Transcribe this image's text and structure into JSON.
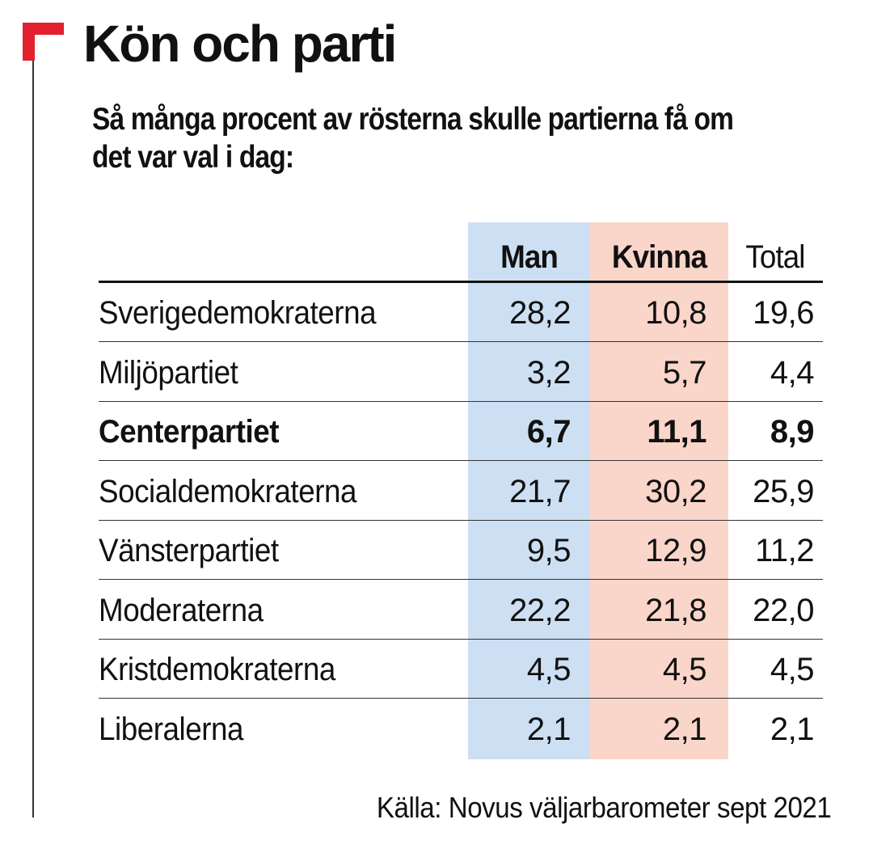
{
  "title": "Kön och parti",
  "subtitle": "Så många procent av rösterna skulle partierna få om det var val i dag:",
  "source": "Källa: Novus väljarbarometer sept 2021",
  "colors": {
    "logo": "#e3202d",
    "man_column": "#cddff3",
    "kvinna_column": "#fad5c9"
  },
  "chart_data": {
    "type": "table",
    "columns": [
      "Man",
      "Kvinna",
      "Total"
    ],
    "rows": [
      {
        "party": "Sverigedemokraterna",
        "man": "28,2",
        "kvinna": "10,8",
        "total": "19,6",
        "bold": false
      },
      {
        "party": "Miljöpartiet",
        "man": "3,2",
        "kvinna": "5,7",
        "total": "4,4",
        "bold": false
      },
      {
        "party": "Centerpartiet",
        "man": "6,7",
        "kvinna": "11,1",
        "total": "8,9",
        "bold": true
      },
      {
        "party": "Socialdemokraterna",
        "man": "21,7",
        "kvinna": "30,2",
        "total": "25,9",
        "bold": false
      },
      {
        "party": "Vänsterpartiet",
        "man": "9,5",
        "kvinna": "12,9",
        "total": "11,2",
        "bold": false
      },
      {
        "party": "Moderaterna",
        "man": "22,2",
        "kvinna": "21,8",
        "total": "22,0",
        "bold": false
      },
      {
        "party": "Kristdemokraterna",
        "man": "4,5",
        "kvinna": "4,5",
        "total": "4,5",
        "bold": false
      },
      {
        "party": "Liberalerna",
        "man": "2,1",
        "kvinna": "2,1",
        "total": "2,1",
        "bold": false
      }
    ]
  }
}
